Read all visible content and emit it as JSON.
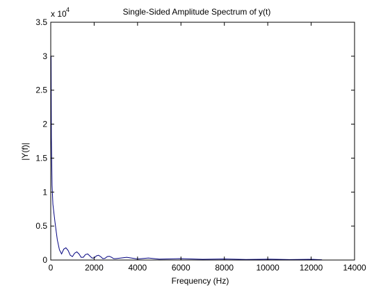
{
  "chart_data": {
    "type": "line",
    "title": "Single-Sided Amplitude Spectrum of y(t)",
    "xlabel": "Frequency (Hz)",
    "ylabel": "|Y(f)|",
    "y_exponent_label": "x 10",
    "y_exponent_power": "4",
    "xlim": [
      0,
      14000
    ],
    "ylim": [
      0,
      3.5
    ],
    "x_ticks": [
      0,
      2000,
      4000,
      6000,
      8000,
      10000,
      12000,
      14000
    ],
    "x_tick_labels": [
      "0",
      "2000",
      "4000",
      "6000",
      "8000",
      "10000",
      "12000",
      "14000"
    ],
    "y_ticks": [
      0,
      0.5,
      1,
      1.5,
      2,
      2.5,
      3,
      3.5
    ],
    "y_tick_labels": [
      "0",
      "0.5",
      "1",
      "1.5",
      "2",
      "2.5",
      "3",
      "3.5"
    ],
    "grid": false,
    "series": [
      {
        "color": "#00007f",
        "x_end": 12500,
        "points": [
          [
            0,
            2.45
          ],
          [
            15,
            3.0
          ],
          [
            30,
            1.8
          ],
          [
            60,
            1.1
          ],
          [
            100,
            0.82
          ],
          [
            200,
            0.55
          ],
          [
            300,
            0.3
          ],
          [
            400,
            0.15
          ],
          [
            500,
            0.09
          ],
          [
            600,
            0.16
          ],
          [
            700,
            0.18
          ],
          [
            800,
            0.14
          ],
          [
            900,
            0.07
          ],
          [
            1000,
            0.05
          ],
          [
            1100,
            0.1
          ],
          [
            1200,
            0.12
          ],
          [
            1300,
            0.09
          ],
          [
            1400,
            0.04
          ],
          [
            1500,
            0.04
          ],
          [
            1600,
            0.08
          ],
          [
            1700,
            0.09
          ],
          [
            1800,
            0.06
          ],
          [
            1900,
            0.03
          ],
          [
            2000,
            0.03
          ],
          [
            2100,
            0.06
          ],
          [
            2200,
            0.07
          ],
          [
            2300,
            0.05
          ],
          [
            2400,
            0.02
          ],
          [
            2500,
            0.025
          ],
          [
            2600,
            0.05
          ],
          [
            2700,
            0.055
          ],
          [
            2800,
            0.04
          ],
          [
            2900,
            0.02
          ],
          [
            3000,
            0.02
          ],
          [
            3500,
            0.04
          ],
          [
            4000,
            0.015
          ],
          [
            4500,
            0.03
          ],
          [
            5000,
            0.012
          ],
          [
            6000,
            0.02
          ],
          [
            7000,
            0.01
          ],
          [
            8000,
            0.015
          ],
          [
            9000,
            0.008
          ],
          [
            10000,
            0.012
          ],
          [
            11000,
            0.006
          ],
          [
            12000,
            0.01
          ],
          [
            12500,
            0.004
          ]
        ]
      }
    ]
  }
}
